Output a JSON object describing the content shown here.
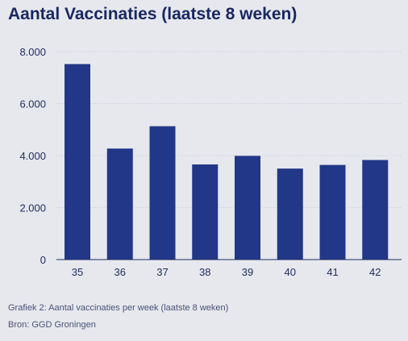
{
  "title": "Aantal Vaccinaties (laatste 8 weken)",
  "caption": "Grafiek 2: Aantal vaccinaties per week (laatste 8 weken)",
  "source": "Bron: GGD Groningen",
  "colors": {
    "bar": "#233788",
    "grid": "#c7cbd6",
    "axis": "#1f2b5c"
  },
  "chart_data": {
    "type": "bar",
    "title": "Aantal Vaccinaties (laatste 8 weken)",
    "xlabel": "",
    "ylabel": "",
    "categories": [
      "35",
      "36",
      "37",
      "38",
      "39",
      "40",
      "41",
      "42"
    ],
    "values": [
      7520,
      4270,
      5130,
      3660,
      3990,
      3500,
      3640,
      3830
    ],
    "ylim": [
      0,
      8000
    ],
    "yticks": [
      0,
      2000,
      4000,
      6000,
      8000
    ],
    "ytick_labels": [
      "0",
      "2.000",
      "4.000",
      "6.000",
      "8.000"
    ],
    "grid": true,
    "legend": "none"
  }
}
